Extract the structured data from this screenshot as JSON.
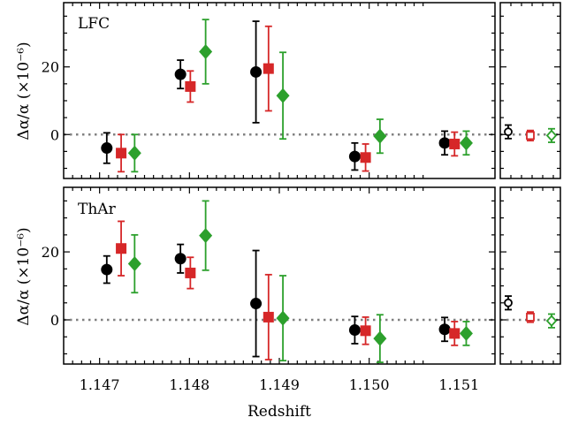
{
  "chart_data": {
    "type": "scatter",
    "xlabel": "Redshift",
    "ylabel": "Δα/α (×10⁻⁶)",
    "xlim": [
      1.1466,
      1.1514
    ],
    "ylim": [
      -13,
      39
    ],
    "xticks": [
      1.147,
      1.148,
      1.149,
      1.15,
      1.151
    ],
    "xtick_labels": [
      "1.147",
      "1.148",
      "1.149",
      "1.150",
      "1.151"
    ],
    "yticks": [
      0,
      20
    ],
    "ytick_labels": [
      "0",
      "20"
    ],
    "reference_line": 0,
    "colors": [
      "#000000",
      "#d62728",
      "#2ca02c"
    ],
    "markers": [
      "circle",
      "square",
      "diamond"
    ],
    "panels": [
      {
        "label": "LFC",
        "series": [
          {
            "x": [
              1.14708,
              1.1479,
              1.14874,
              1.14984,
              1.15084
            ],
            "y": [
              -4.0,
              17.8,
              18.5,
              -6.5,
              -2.5
            ],
            "err": [
              4.5,
              4.2,
              15.0,
              4.0,
              3.5
            ]
          },
          {
            "x": [
              1.14724,
              1.14801,
              1.14888,
              1.14996,
              1.15095
            ],
            "y": [
              -5.5,
              14.2,
              19.5,
              -6.8,
              -2.8
            ],
            "err": [
              5.5,
              4.6,
              12.5,
              4.0,
              3.5
            ]
          },
          {
            "x": [
              1.14739,
              1.14818,
              1.14904,
              1.15012,
              1.15108
            ],
            "y": [
              -5.5,
              24.5,
              11.5,
              -0.5,
              -2.5
            ],
            "err": [
              5.5,
              9.5,
              12.8,
              5.0,
              3.5
            ]
          }
        ],
        "summary": [
          {
            "y": 0.8,
            "err": 2.0
          },
          {
            "y": -0.3,
            "err": 1.5
          },
          {
            "y": -0.3,
            "err": 2.0
          }
        ]
      },
      {
        "label": "ThAr",
        "series": [
          {
            "x": [
              1.14708,
              1.1479,
              1.14874,
              1.14984,
              1.15084
            ],
            "y": [
              14.8,
              18.0,
              4.8,
              -3.0,
              -2.8
            ],
            "err": [
              4.0,
              4.2,
              15.6,
              4.0,
              3.5
            ]
          },
          {
            "x": [
              1.14724,
              1.14801,
              1.14888,
              1.14996,
              1.15095
            ],
            "y": [
              21.0,
              13.8,
              0.8,
              -3.2,
              -4.0
            ],
            "err": [
              8.0,
              4.6,
              12.5,
              4.0,
              3.5
            ]
          },
          {
            "x": [
              1.14739,
              1.14818,
              1.14904,
              1.15012,
              1.15108
            ],
            "y": [
              16.5,
              24.8,
              0.5,
              -5.5,
              -4.0
            ],
            "err": [
              8.5,
              10.2,
              12.5,
              7.0,
              3.5
            ]
          }
        ],
        "summary": [
          {
            "y": 5.0,
            "err": 2.0
          },
          {
            "y": 0.8,
            "err": 1.5
          },
          {
            "y": -0.3,
            "err": 2.0
          }
        ]
      }
    ]
  }
}
